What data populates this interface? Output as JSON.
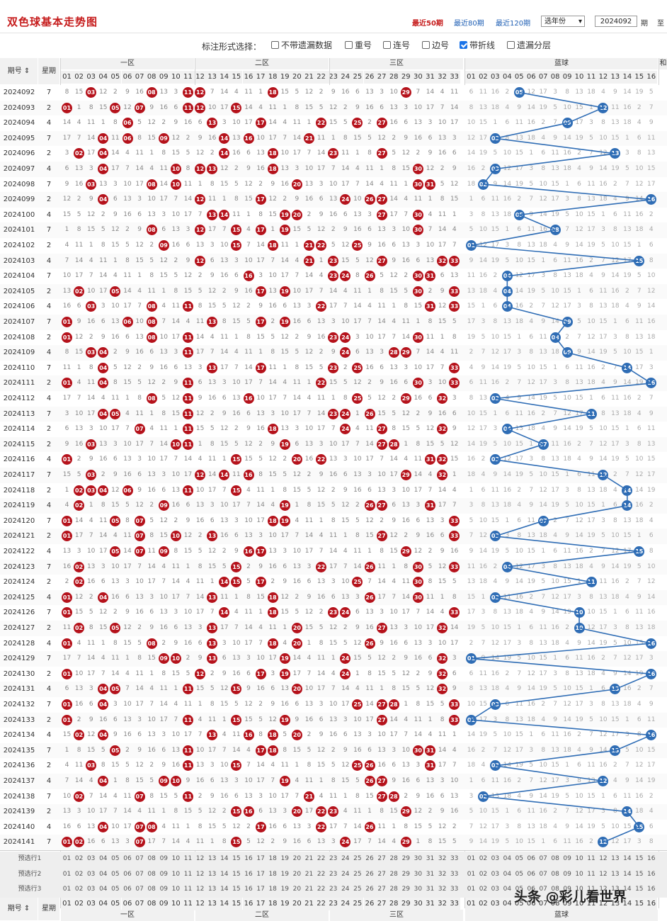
{
  "header": {
    "title": "双色球基本走势图",
    "links": [
      "最近50期",
      "最近80期",
      "最近120期"
    ],
    "year_select": "选年份",
    "issue_from": "2024092",
    "suffix_qi": "期",
    "suffix_to": "至"
  },
  "options": {
    "label": "标注形式选择：",
    "items": [
      {
        "label": "不带遗漏数据",
        "checked": false
      },
      {
        "label": "重号",
        "checked": false
      },
      {
        "label": "连号",
        "checked": false
      },
      {
        "label": "边号",
        "checked": false
      },
      {
        "label": "带折线",
        "checked": true
      },
      {
        "label": "遗漏分层",
        "checked": false
      }
    ]
  },
  "table": {
    "col_issue": "期号",
    "col_week": "星期",
    "zones": [
      "一区",
      "二区",
      "三区",
      "蓝球"
    ],
    "next": "和",
    "red_numbers": [
      "01",
      "02",
      "03",
      "04",
      "05",
      "06",
      "07",
      "08",
      "09",
      "10",
      "11",
      "12",
      "13",
      "14",
      "15",
      "16",
      "17",
      "18",
      "19",
      "20",
      "21",
      "22",
      "23",
      "24",
      "25",
      "26",
      "27",
      "28",
      "29",
      "30",
      "31",
      "32",
      "33"
    ],
    "blue_numbers": [
      "01",
      "02",
      "03",
      "04",
      "05",
      "06",
      "07",
      "08",
      "09",
      "10",
      "11",
      "12",
      "13",
      "14",
      "15",
      "16"
    ],
    "rows": [
      {
        "issue": "2024092",
        "week": "7",
        "red": [
          3,
          8,
          11,
          12,
          18,
          29
        ],
        "blue": 5
      },
      {
        "issue": "2024093",
        "week": "2",
        "red": [
          1,
          5,
          7,
          11,
          12,
          15
        ],
        "blue": 12
      },
      {
        "issue": "2024094",
        "week": "4",
        "red": [
          6,
          13,
          17,
          22,
          25,
          27
        ],
        "blue": 9
      },
      {
        "issue": "2024095",
        "week": "7",
        "red": [
          4,
          6,
          9,
          14,
          16,
          21
        ],
        "blue": 3
      },
      {
        "issue": "2024096",
        "week": "2",
        "red": [
          2,
          4,
          14,
          18,
          23,
          27
        ],
        "blue": 13
      },
      {
        "issue": "2024097",
        "week": "4",
        "red": [
          4,
          10,
          12,
          13,
          18,
          30
        ],
        "blue": 3
      },
      {
        "issue": "2024098",
        "week": "7",
        "red": [
          3,
          8,
          10,
          20,
          30,
          31
        ],
        "blue": 2
      },
      {
        "issue": "2024099",
        "week": "2",
        "red": [
          4,
          12,
          17,
          24,
          26,
          27
        ],
        "blue": 16
      },
      {
        "issue": "2024100",
        "week": "4",
        "red": [
          13,
          14,
          19,
          20,
          27,
          30
        ],
        "blue": 5
      },
      {
        "issue": "2024101",
        "week": "7",
        "red": [
          8,
          12,
          15,
          17,
          19,
          30
        ],
        "blue": 8
      },
      {
        "issue": "2024102",
        "week": "2",
        "red": [
          9,
          15,
          18,
          21,
          22,
          25
        ],
        "blue": 1
      },
      {
        "issue": "2024103",
        "week": "4",
        "red": [
          12,
          21,
          23,
          27,
          32,
          33
        ],
        "blue": 15
      },
      {
        "issue": "2024104",
        "week": "7",
        "red": [
          16,
          23,
          24,
          26,
          30,
          31
        ],
        "blue": 4
      },
      {
        "issue": "2024105",
        "week": "2",
        "red": [
          2,
          5,
          17,
          19,
          30,
          33
        ],
        "blue": 4
      },
      {
        "issue": "2024106",
        "week": "4",
        "red": [
          3,
          8,
          11,
          22,
          31,
          33
        ],
        "blue": 4
      },
      {
        "issue": "2024107",
        "week": "7",
        "red": [
          1,
          6,
          8,
          13,
          17,
          19
        ],
        "blue": 9
      },
      {
        "issue": "2024108",
        "week": "2",
        "red": [
          1,
          8,
          11,
          23,
          24,
          30
        ],
        "blue": 8
      },
      {
        "issue": "2024109",
        "week": "4",
        "red": [
          3,
          4,
          11,
          24,
          28,
          29
        ],
        "blue": 9
      },
      {
        "issue": "2024110",
        "week": "7",
        "red": [
          4,
          13,
          17,
          23,
          25,
          33
        ],
        "blue": 14
      },
      {
        "issue": "2024111",
        "week": "2",
        "red": [
          1,
          4,
          11,
          22,
          30,
          33
        ],
        "blue": 16
      },
      {
        "issue": "2024112",
        "week": "4",
        "red": [
          8,
          11,
          16,
          25,
          29,
          32
        ],
        "blue": 3
      },
      {
        "issue": "2024113",
        "week": "7",
        "red": [
          4,
          5,
          11,
          23,
          24,
          26
        ],
        "blue": 11
      },
      {
        "issue": "2024114",
        "week": "2",
        "red": [
          7,
          11,
          18,
          24,
          27,
          32
        ],
        "blue": 4
      },
      {
        "issue": "2024115",
        "week": "2",
        "red": [
          3,
          10,
          11,
          19,
          27,
          28
        ],
        "blue": 7
      },
      {
        "issue": "2024116",
        "week": "4",
        "red": [
          1,
          15,
          20,
          22,
          31,
          32
        ],
        "blue": 3
      },
      {
        "issue": "2024117",
        "week": "7",
        "red": [
          3,
          12,
          14,
          16,
          29,
          32
        ],
        "blue": 12
      },
      {
        "issue": "2024118",
        "week": "2",
        "red": [
          2,
          3,
          4,
          6,
          11,
          15
        ],
        "blue": 14
      },
      {
        "issue": "2024119",
        "week": "4",
        "red": [
          2,
          9,
          19,
          26,
          27,
          31
        ],
        "blue": 14
      },
      {
        "issue": "2024120",
        "week": "7",
        "red": [
          1,
          5,
          7,
          18,
          19,
          33
        ],
        "blue": 7
      },
      {
        "issue": "2024121",
        "week": "2",
        "red": [
          1,
          7,
          10,
          13,
          27,
          33
        ],
        "blue": 3
      },
      {
        "issue": "2024122",
        "week": "4",
        "red": [
          5,
          7,
          9,
          16,
          17,
          29
        ],
        "blue": 15
      },
      {
        "issue": "2024123",
        "week": "7",
        "red": [
          2,
          15,
          22,
          26,
          30,
          33
        ],
        "blue": 4
      },
      {
        "issue": "2024124",
        "week": "2",
        "red": [
          2,
          14,
          15,
          17,
          25,
          30
        ],
        "blue": 11
      },
      {
        "issue": "2024125",
        "week": "4",
        "red": [
          1,
          4,
          13,
          18,
          26,
          30
        ],
        "blue": 3
      },
      {
        "issue": "2024126",
        "week": "7",
        "red": [
          1,
          14,
          18,
          23,
          24,
          33
        ],
        "blue": 10
      },
      {
        "issue": "2024127",
        "week": "2",
        "red": [
          2,
          5,
          13,
          20,
          27,
          32
        ],
        "blue": 10
      },
      {
        "issue": "2024128",
        "week": "4",
        "red": [
          1,
          8,
          13,
          18,
          20,
          26
        ],
        "blue": 16
      },
      {
        "issue": "2024129",
        "week": "7",
        "red": [
          9,
          10,
          13,
          19,
          24,
          32
        ],
        "blue": 1
      },
      {
        "issue": "2024130",
        "week": "2",
        "red": [
          1,
          12,
          17,
          19,
          24,
          32
        ],
        "blue": 16
      },
      {
        "issue": "2024131",
        "week": "4",
        "red": [
          4,
          5,
          11,
          15,
          20,
          32
        ],
        "blue": 13
      },
      {
        "issue": "2024132",
        "week": "7",
        "red": [
          1,
          4,
          25,
          27,
          28,
          33
        ],
        "blue": 3
      },
      {
        "issue": "2024133",
        "week": "2",
        "red": [
          1,
          11,
          15,
          19,
          27,
          33
        ],
        "blue": 1
      },
      {
        "issue": "2024134",
        "week": "4",
        "red": [
          2,
          4,
          13,
          16,
          18,
          20
        ],
        "blue": 16
      },
      {
        "issue": "2024135",
        "week": "7",
        "red": [
          5,
          11,
          17,
          18,
          30,
          31
        ],
        "blue": 13
      },
      {
        "issue": "2024136",
        "week": "2",
        "red": [
          3,
          11,
          15,
          25,
          26,
          31
        ],
        "blue": 3
      },
      {
        "issue": "2024137",
        "week": "4",
        "red": [
          4,
          9,
          10,
          19,
          26,
          27
        ],
        "blue": 12
      },
      {
        "issue": "2024138",
        "week": "7",
        "red": [
          2,
          7,
          11,
          21,
          27,
          28
        ],
        "blue": 2
      },
      {
        "issue": "2024139",
        "week": "2",
        "red": [
          15,
          16,
          20,
          22,
          23,
          29
        ],
        "blue": 14
      },
      {
        "issue": "2024140",
        "week": "4",
        "red": [
          4,
          7,
          8,
          17,
          22,
          26
        ],
        "blue": 15
      },
      {
        "issue": "2024141",
        "week": "7",
        "red": [
          1,
          2,
          7,
          15,
          24,
          29
        ],
        "blue": 12
      }
    ],
    "presets": [
      "预选行1",
      "预选行2",
      "预选行3"
    ]
  },
  "watermark": "头条 @彩儿看世界",
  "colors": {
    "red_ball": "#b5121b",
    "blue_ball": "#2f6db5",
    "line": "#2f6db5"
  }
}
